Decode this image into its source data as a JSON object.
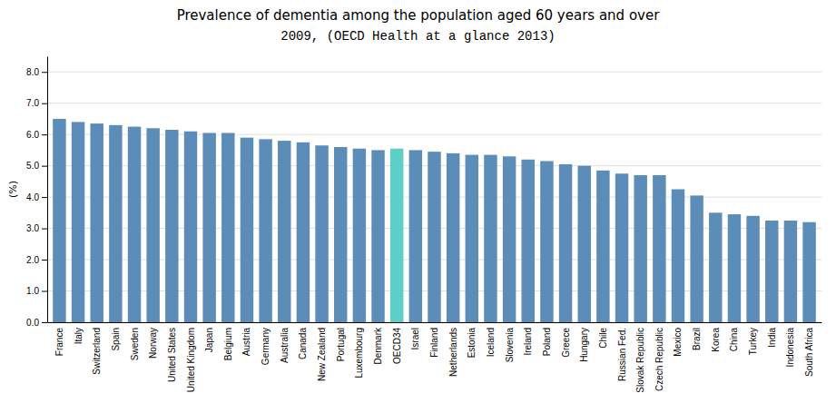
{
  "chart_data": {
    "type": "bar",
    "title": "Prevalence of dementia among the population aged 60 years and over",
    "subtitle": "2009, (OECD Health at a glance 2013)",
    "ylabel": "(%)",
    "categories": [
      "France",
      "Italy",
      "Switzerland",
      "Spain",
      "Sweden",
      "Norway",
      "United States",
      "United Kingdom",
      "Japan",
      "Belgium",
      "Austria",
      "Germany",
      "Australia",
      "Canada",
      "New Zealand",
      "Portugal",
      "Luxembourg",
      "Denmark",
      "OECD34",
      "Israel",
      "Finland",
      "Netherlands",
      "Estonia",
      "Iceland",
      "Slovenia",
      "Ireland",
      "Poland",
      "Greece",
      "Hungary",
      "Chile",
      "Russian Fed.",
      "Slovak Republic",
      "Czech Republic",
      "Mexico",
      "Brazil",
      "Korea",
      "China",
      "Turkey",
      "India",
      "Indonesia",
      "South Africa"
    ],
    "values": [
      6.5,
      6.4,
      6.35,
      6.3,
      6.25,
      6.2,
      6.15,
      6.1,
      6.05,
      6.05,
      5.9,
      5.85,
      5.8,
      5.75,
      5.65,
      5.6,
      5.55,
      5.5,
      5.55,
      5.5,
      5.45,
      5.4,
      5.35,
      5.35,
      5.3,
      5.2,
      5.15,
      5.05,
      5.0,
      4.85,
      4.75,
      4.7,
      4.7,
      4.25,
      4.05,
      3.5,
      3.45,
      3.4,
      3.25,
      3.25,
      3.2
    ],
    "colors": [
      "#5b8db8",
      "#5b8db8",
      "#5b8db8",
      "#5b8db8",
      "#5b8db8",
      "#5b8db8",
      "#5b8db8",
      "#5b8db8",
      "#5b8db8",
      "#5b8db8",
      "#5b8db8",
      "#5b8db8",
      "#5b8db8",
      "#5b8db8",
      "#5b8db8",
      "#5b8db8",
      "#5b8db8",
      "#5b8db8",
      "#5ecfc8",
      "#5b8db8",
      "#5b8db8",
      "#5b8db8",
      "#5b8db8",
      "#5b8db8",
      "#5b8db8",
      "#5b8db8",
      "#5b8db8",
      "#5b8db8",
      "#5b8db8",
      "#5b8db8",
      "#5b8db8",
      "#5b8db8",
      "#5b8db8",
      "#5b8db8",
      "#5b8db8",
      "#5b8db8",
      "#5b8db8",
      "#5b8db8",
      "#5b8db8",
      "#5b8db8",
      "#5b8db8"
    ],
    "ylim": [
      0,
      8.5
    ],
    "yticks": [
      {
        "value": 0.0,
        "label": "0.0"
      },
      {
        "value": 1.0,
        "label": "1.0"
      },
      {
        "value": 2.0,
        "label": "2.0"
      },
      {
        "value": 3.0,
        "label": "3.0"
      },
      {
        "value": 4.0,
        "label": "4.0"
      },
      {
        "value": 5.0,
        "label": "5.0"
      },
      {
        "value": 6.0,
        "label": "6.0"
      },
      {
        "value": 7.0,
        "label": "7.0"
      },
      {
        "value": 8.0,
        "label": "8.0"
      }
    ],
    "grid": true
  }
}
